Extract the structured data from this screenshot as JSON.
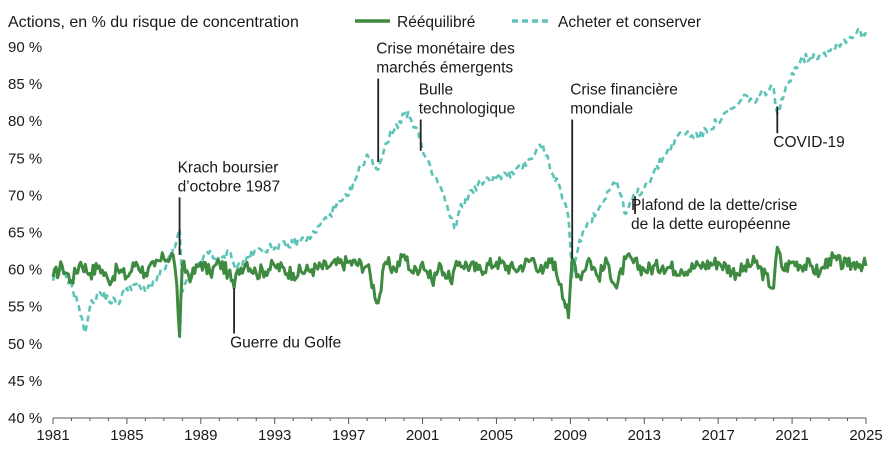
{
  "chart_data": {
    "type": "line",
    "title": "Actions, en % du risque de concentration",
    "xlabel": "",
    "ylabel": "",
    "xlim": [
      1981,
      2025
    ],
    "ylim": [
      40,
      92
    ],
    "x_ticks": [
      "1981",
      "1985",
      "1989",
      "1993",
      "1997",
      "2001",
      "2005",
      "2009",
      "2013",
      "2017",
      "2021",
      "2025"
    ],
    "y_ticks": [
      "40 %",
      "45 %",
      "50 %",
      "55 %",
      "60 %",
      "65 %",
      "70 %",
      "75 %",
      "80 %",
      "85 %",
      "90 %"
    ],
    "y_tick_values": [
      40,
      45,
      50,
      55,
      60,
      65,
      70,
      75,
      80,
      85,
      90
    ],
    "legend_position": "top",
    "series": [
      {
        "name": "Rééquilibré",
        "color": "#3e8a41",
        "style": "solid",
        "x": [
          1981.0,
          1981.5,
          1982.0,
          1982.5,
          1983.0,
          1983.5,
          1984.0,
          1984.5,
          1985.0,
          1985.5,
          1986.0,
          1986.5,
          1987.0,
          1987.5,
          1987.7,
          1987.85,
          1988.0,
          1988.5,
          1989.0,
          1989.5,
          1990.0,
          1990.5,
          1990.8,
          1991.0,
          1991.5,
          1992.0,
          1993.0,
          1994.0,
          1995.0,
          1996.0,
          1997.0,
          1998.0,
          1998.6,
          1999.0,
          1999.5,
          2000.0,
          2000.5,
          2001.0,
          2001.5,
          2002.0,
          2002.5,
          2003.0,
          2004.0,
          2005.0,
          2006.0,
          2007.0,
          2007.5,
          2008.0,
          2008.5,
          2008.9,
          2009.1,
          2009.5,
          2010.0,
          2010.5,
          2011.0,
          2011.5,
          2012.0,
          2013.0,
          2014.0,
          2015.0,
          2016.0,
          2017.0,
          2018.0,
          2019.0,
          2020.0,
          2020.2,
          2020.5,
          2021.0,
          2022.0,
          2022.5,
          2023.0,
          2024.0,
          2024.5,
          2025.0
        ],
        "values": [
          59.0,
          60.5,
          58.5,
          61.0,
          59.5,
          60.5,
          58.5,
          60.0,
          59.0,
          61.0,
          59.5,
          60.5,
          61.5,
          62.0,
          58.0,
          51.0,
          60.5,
          59.0,
          61.0,
          59.5,
          61.0,
          59.5,
          57.5,
          60.0,
          61.0,
          59.5,
          60.5,
          59.5,
          60.0,
          60.5,
          61.0,
          60.5,
          55.5,
          61.0,
          60.0,
          62.0,
          59.5,
          61.0,
          58.5,
          60.5,
          58.5,
          61.0,
          60.0,
          61.0,
          60.0,
          61.5,
          59.5,
          61.5,
          58.0,
          53.5,
          61.5,
          59.0,
          61.5,
          59.0,
          61.0,
          57.5,
          61.5,
          60.0,
          60.5,
          60.0,
          60.5,
          61.0,
          59.5,
          61.0,
          57.5,
          63.0,
          60.0,
          61.0,
          60.5,
          59.5,
          61.5,
          60.5,
          61.0,
          60.5
        ]
      },
      {
        "name": "Acheter et conserver",
        "color": "#5cc4b7",
        "style": "dashed",
        "x": [
          1981.0,
          1981.5,
          1982.0,
          1982.4,
          1982.7,
          1983.0,
          1983.5,
          1984.0,
          1984.5,
          1985.0,
          1985.5,
          1986.0,
          1986.5,
          1987.0,
          1987.6,
          1987.85,
          1988.0,
          1988.5,
          1989.0,
          1989.5,
          1990.0,
          1990.6,
          1990.9,
          1991.0,
          1992.0,
          1993.0,
          1994.0,
          1995.0,
          1996.0,
          1997.0,
          1997.5,
          1998.0,
          1998.6,
          1999.0,
          1999.5,
          2000.0,
          2000.3,
          2000.7,
          2001.0,
          2001.5,
          2002.0,
          2002.5,
          2002.8,
          2003.0,
          2003.5,
          2004.0,
          2005.0,
          2006.0,
          2007.0,
          2007.5,
          2008.0,
          2008.5,
          2008.9,
          2009.1,
          2009.5,
          2010.0,
          2010.5,
          2011.0,
          2011.5,
          2012.0,
          2012.5,
          2013.0,
          2014.0,
          2015.0,
          2016.0,
          2017.0,
          2018.0,
          2018.5,
          2019.0,
          2019.5,
          2020.0,
          2020.2,
          2020.5,
          2021.0,
          2021.5,
          2022.0,
          2022.5,
          2023.0,
          2023.5,
          2024.0,
          2024.5,
          2025.0
        ],
        "values": [
          58.5,
          60.0,
          58.0,
          55.0,
          51.5,
          55.0,
          57.0,
          56.0,
          55.5,
          57.5,
          58.0,
          57.0,
          58.5,
          60.0,
          63.0,
          65.5,
          57.0,
          59.5,
          61.0,
          62.5,
          61.0,
          62.5,
          60.0,
          60.5,
          62.5,
          63.0,
          63.5,
          64.5,
          67.5,
          70.0,
          73.0,
          75.5,
          73.5,
          77.0,
          79.0,
          81.0,
          80.5,
          79.0,
          76.0,
          73.0,
          71.0,
          67.0,
          65.5,
          68.0,
          70.0,
          71.5,
          72.5,
          73.0,
          75.5,
          77.0,
          73.0,
          70.5,
          67.0,
          59.0,
          64.0,
          66.5,
          68.0,
          70.5,
          72.0,
          67.5,
          70.0,
          71.0,
          75.0,
          78.5,
          78.0,
          80.0,
          82.0,
          83.5,
          82.5,
          84.0,
          84.5,
          81.0,
          83.0,
          86.5,
          88.5,
          88.5,
          89.0,
          89.5,
          90.5,
          91.0,
          92.0,
          92.0
        ]
      }
    ],
    "annotations": [
      {
        "lines": [
          "Krach boursier",
          "d’octobre 1987"
        ],
        "x": 1987.85,
        "y": 62.0,
        "text_at": 70.0,
        "text_side": "above"
      },
      {
        "lines": [
          "Guerre du Golfe"
        ],
        "x": 1990.8,
        "y": 57.5,
        "text_at": 49.5,
        "text_side": "below"
      },
      {
        "lines": [
          "Crise monétaire des",
          "marchés émergents"
        ],
        "x": 1998.6,
        "y": 74.5,
        "text_at": 86.0,
        "text_side": "above"
      },
      {
        "lines": [
          "Bulle",
          "technologique"
        ],
        "x": 2000.9,
        "y": 76.0,
        "text_at": 80.5,
        "text_side": "above"
      },
      {
        "lines": [
          "Crise financière",
          "mondiale"
        ],
        "x": 2009.1,
        "y": 61.5,
        "text_at": 80.5,
        "text_side": "above"
      },
      {
        "lines": [
          "Plafond de la dette/crise",
          "de la dette européenne"
        ],
        "x": 2012.5,
        "y": 67.5,
        "text_at": 68.0,
        "text_side": "below"
      },
      {
        "lines": [
          "COVID-19"
        ],
        "x": 2020.2,
        "y": 82.0,
        "text_at": 76.5,
        "text_side": "below"
      }
    ]
  }
}
